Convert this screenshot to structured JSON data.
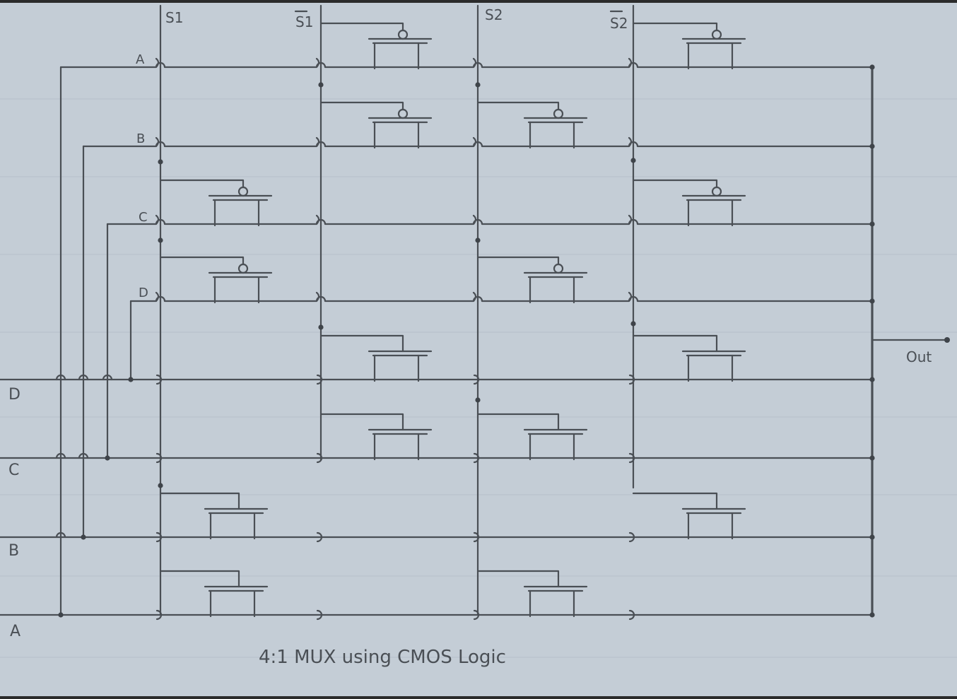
{
  "diagram": {
    "title": "4:1 MUX using CMOS Logic",
    "select_labels": [
      "S1",
      "S1",
      "S2",
      "S2"
    ],
    "select_subscripts": [
      "1",
      "1",
      "2",
      "2"
    ],
    "select_bars": [
      false,
      true,
      false,
      true
    ],
    "column_input_labels": [
      "A",
      "B",
      "C",
      "D"
    ],
    "row_input_labels": [
      "D",
      "C",
      "B",
      "A"
    ],
    "output_label": "Out"
  }
}
